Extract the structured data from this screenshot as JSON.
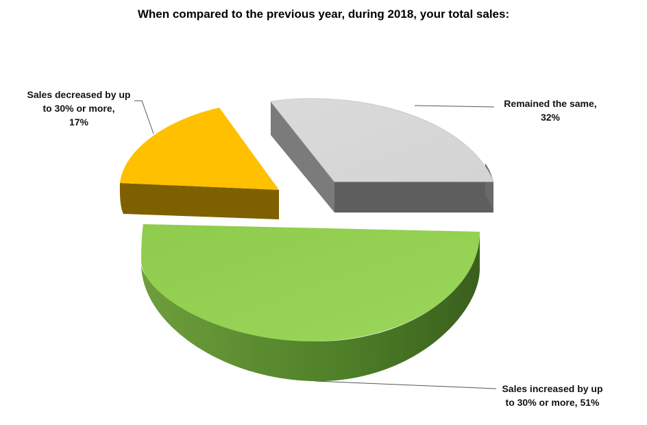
{
  "chart_data": {
    "type": "pie",
    "title": "When compared to the previous year, during 2018,  your total sales:",
    "slices": [
      {
        "key": "same",
        "label_line1": "Remained the same,",
        "label_line2": "32%",
        "value": 32,
        "color": "#D9D9D9",
        "side_color": "#5E5E5E"
      },
      {
        "key": "increased",
        "label_line1": "Sales increased by up",
        "label_line2": "to 30% or more, 51%",
        "value": 51,
        "color": "#92D050",
        "side_color": "#4A7A26"
      },
      {
        "key": "decreased",
        "label_line1": "Sales decreased by up",
        "label_line2": "to 30% or more,",
        "label_line3": "17%",
        "value": 17,
        "color": "#FFC000",
        "side_color": "#7F6000"
      }
    ],
    "style": "3d-exploded",
    "legend": "none"
  }
}
